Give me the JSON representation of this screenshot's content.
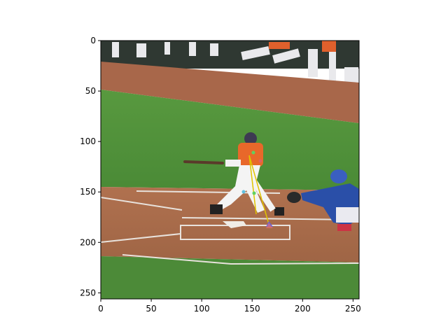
{
  "chart_data": {
    "type": "image",
    "title": "",
    "xlabel": "",
    "ylabel": "",
    "xlim": [
      0,
      256
    ],
    "ylim": [
      256,
      0
    ],
    "x_ticks": [
      0,
      50,
      100,
      150,
      200,
      250
    ],
    "y_ticks": [
      0,
      50,
      100,
      150,
      200,
      250
    ],
    "grid": false,
    "image_content": {
      "scene": "baseball at-bat viewed from behind home plate",
      "keypoints_color": "#e8d000"
    }
  },
  "colors": {
    "grass": "#4f8f3a",
    "dirt": "#a86a4a",
    "stands": "#2e3a32",
    "batter_jersey": "#e8682a",
    "catcher_jersey": "#2a4fa8"
  }
}
